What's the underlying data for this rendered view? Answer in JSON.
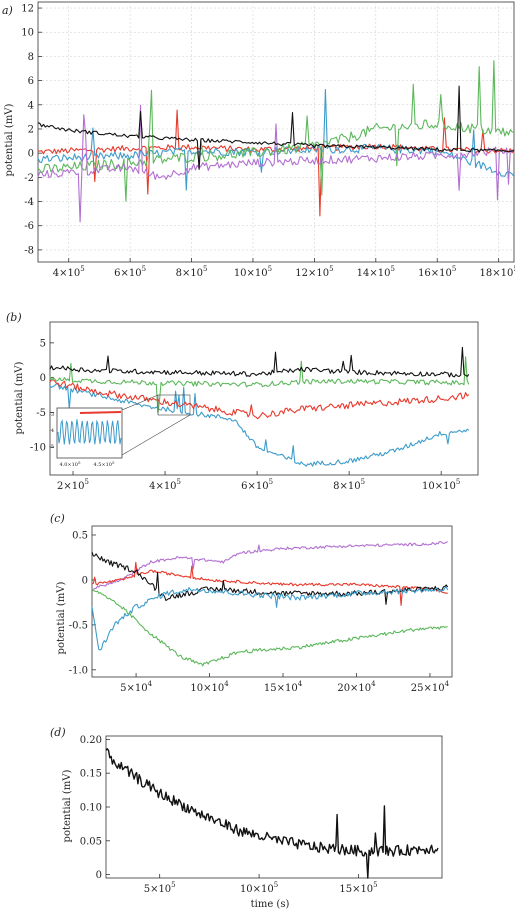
{
  "chart_data": [
    {
      "panel_label": "a)",
      "type": "line",
      "ylabel": "potential (mV)",
      "xlim": [
        300000,
        1850000
      ],
      "ylim": [
        -9,
        12.5
      ],
      "yticks": [
        -8,
        -6,
        -4,
        -2,
        0,
        2,
        4,
        6,
        8,
        10,
        12
      ],
      "ytick_labels": [
        "-8",
        "-6",
        "-4",
        "-2",
        "0",
        "2",
        "4",
        "6",
        "8",
        "10",
        "12"
      ],
      "xticks": [
        400000,
        600000,
        800000,
        1000000,
        1200000,
        1400000,
        1600000,
        1800000
      ],
      "xtick_labels": [
        {
          "m": "4",
          "e": "5"
        },
        {
          "m": "6",
          "e": "5"
        },
        {
          "m": "8",
          "e": "5"
        },
        {
          "m": "10",
          "e": "5"
        },
        {
          "m": "12",
          "e": "5"
        },
        {
          "m": "14",
          "e": "5"
        },
        {
          "m": "16",
          "e": "5"
        },
        {
          "m": "18",
          "e": "5"
        }
      ],
      "grid": true,
      "series": [
        {
          "color": "#e8392c",
          "x": [
            300000,
            400000,
            600000,
            800000,
            1000000,
            1200000,
            1400000,
            1600000,
            1800000,
            1850000
          ],
          "y": [
            0.1,
            0.2,
            0.4,
            0.5,
            0.3,
            0.4,
            0.6,
            0.3,
            0.2,
            0.2
          ]
        },
        {
          "color": "#3d9ccb",
          "x": [
            300000,
            400000,
            600000,
            800000,
            1000000,
            1200000,
            1400000,
            1600000,
            1800000,
            1850000
          ],
          "y": [
            -0.5,
            -0.4,
            -0.2,
            0.2,
            0.1,
            0.3,
            0.4,
            0.2,
            -1.5,
            -1.8
          ]
        },
        {
          "color": "#5db85c",
          "x": [
            300000,
            400000,
            600000,
            800000,
            1000000,
            1200000,
            1300000,
            1400000,
            1600000,
            1800000,
            1850000
          ],
          "y": [
            -1.4,
            -1.2,
            -0.8,
            -0.3,
            0.0,
            0.6,
            1.2,
            2.0,
            2.4,
            1.8,
            1.6
          ]
        },
        {
          "color": "#b26fd1",
          "x": [
            300000,
            400000,
            600000,
            700000,
            800000,
            1000000,
            1200000,
            1400000,
            1600000,
            1800000,
            1850000
          ],
          "y": [
            -1.8,
            -1.6,
            -1.2,
            -2.0,
            -1.2,
            -0.8,
            -0.6,
            -0.4,
            -0.2,
            0.2,
            0.3
          ]
        },
        {
          "color": "#111111",
          "x": [
            300000,
            400000,
            600000,
            800000,
            1000000,
            1200000,
            1400000,
            1600000,
            1800000,
            1850000
          ],
          "y": [
            2.4,
            1.9,
            1.4,
            1.1,
            0.9,
            0.6,
            0.5,
            0.3,
            0.2,
            0.2
          ]
        }
      ]
    },
    {
      "panel_label": "(b)",
      "type": "line",
      "ylabel": "potential (mV)",
      "xlim": [
        150000,
        1080000
      ],
      "ylim": [
        -14,
        8
      ],
      "yticks": [
        -10,
        -5,
        0,
        5
      ],
      "ytick_labels": [
        "-10",
        "-5",
        "0",
        "5"
      ],
      "xticks": [
        200000,
        400000,
        600000,
        800000,
        1000000
      ],
      "xtick_labels": [
        {
          "m": "2",
          "e": "5"
        },
        {
          "m": "4",
          "e": "5"
        },
        {
          "m": "6",
          "e": "5"
        },
        {
          "m": "8",
          "e": "5"
        },
        {
          "m": "10",
          "e": "5"
        }
      ],
      "grid": false,
      "series": [
        {
          "color": "#3d9ccb",
          "x": [
            150000,
            250000,
            350000,
            450000,
            550000,
            600000,
            700000,
            800000,
            900000,
            1000000,
            1060000
          ],
          "y": [
            -1,
            -2.5,
            -4,
            -5,
            -6,
            -10,
            -12.5,
            -12,
            -10.5,
            -8,
            -7.5
          ]
        },
        {
          "color": "#e8392c",
          "x": [
            150000,
            250000,
            350000,
            450000,
            550000,
            600000,
            700000,
            800000,
            900000,
            1000000,
            1060000
          ],
          "y": [
            -0.5,
            -2,
            -3,
            -4,
            -5,
            -5.5,
            -4.5,
            -4,
            -3.5,
            -3,
            -2.5
          ]
        },
        {
          "color": "#5db85c",
          "x": [
            150000,
            250000,
            400000,
            600000,
            700000,
            800000,
            1000000,
            1060000
          ],
          "y": [
            -0.2,
            -0.5,
            -0.8,
            -1.0,
            -0.6,
            -0.5,
            -0.7,
            -0.8
          ]
        },
        {
          "color": "#111111",
          "x": [
            150000,
            250000,
            400000,
            600000,
            700000,
            800000,
            1000000,
            1060000
          ],
          "y": [
            1.5,
            1.0,
            0.8,
            0.5,
            1.2,
            0.8,
            0.5,
            0.3
          ]
        }
      ],
      "inset": {
        "xtick_labels": [
          {
            "m": "4.0",
            "e": "5"
          },
          {
            "m": "4.5",
            "e": "5"
          }
        ],
        "ytick_labels": [
          "-3",
          "-4",
          "-5"
        ]
      }
    },
    {
      "panel_label": "(c)",
      "type": "line",
      "ylabel": "potential (mV)",
      "xlim": [
        20000,
        265000
      ],
      "ylim": [
        -1.08,
        0.6
      ],
      "yticks": [
        -1.0,
        -0.5,
        0,
        0.5
      ],
      "ytick_labels": [
        "-1.0",
        "-0.5",
        "0",
        "0.5"
      ],
      "xticks": [
        50000,
        100000,
        150000,
        200000,
        250000
      ],
      "xtick_labels": [
        {
          "m": "5",
          "e": "4"
        },
        {
          "m": "10",
          "e": "4"
        },
        {
          "m": "15",
          "e": "4"
        },
        {
          "m": "20",
          "e": "4"
        },
        {
          "m": "25",
          "e": "4"
        }
      ],
      "grid": false,
      "series": [
        {
          "color": "#b26fd1",
          "x": [
            20000,
            40000,
            60000,
            80000,
            110000,
            120000,
            150000,
            200000,
            250000,
            262000
          ],
          "y": [
            -0.1,
            0.0,
            0.2,
            0.25,
            0.2,
            0.3,
            0.35,
            0.38,
            0.4,
            0.42
          ]
        },
        {
          "color": "#e8392c",
          "x": [
            20000,
            40000,
            60000,
            80000,
            100000,
            150000,
            200000,
            250000,
            262000
          ],
          "y": [
            -0.05,
            0.0,
            0.1,
            0.05,
            0.0,
            -0.05,
            -0.05,
            -0.1,
            -0.15
          ]
        },
        {
          "color": "#111111",
          "x": [
            20000,
            30000,
            50000,
            70000,
            100000,
            150000,
            200000,
            250000,
            262000
          ],
          "y": [
            0.3,
            0.2,
            0.1,
            -0.2,
            -0.1,
            -0.15,
            -0.15,
            -0.1,
            -0.08
          ]
        },
        {
          "color": "#3d9ccb",
          "x": [
            20000,
            25000,
            35000,
            50000,
            70000,
            90000,
            120000,
            160000,
            200000,
            262000
          ],
          "y": [
            -0.3,
            -0.8,
            -0.5,
            -0.3,
            -0.15,
            -0.1,
            -0.15,
            -0.2,
            -0.15,
            -0.1
          ]
        },
        {
          "color": "#5db85c",
          "x": [
            20000,
            40000,
            60000,
            80000,
            95000,
            120000,
            160000,
            200000,
            240000,
            262000
          ],
          "y": [
            -0.1,
            -0.3,
            -0.6,
            -0.85,
            -0.95,
            -0.8,
            -0.75,
            -0.65,
            -0.55,
            -0.52
          ]
        }
      ]
    },
    {
      "panel_label": "(d)",
      "type": "line",
      "ylabel": "potential (mV)",
      "xlabel": "time (s)",
      "xlim": [
        230000,
        1920000
      ],
      "ylim": [
        -0.005,
        0.205
      ],
      "yticks": [
        0,
        0.05,
        0.1,
        0.15,
        0.2
      ],
      "ytick_labels": [
        "0",
        "0.05",
        "0.10",
        "0.15",
        "0.20"
      ],
      "xticks": [
        500000,
        1000000,
        1500000
      ],
      "xtick_labels": [
        {
          "m": "5",
          "e": "5"
        },
        {
          "m": "10",
          "e": "5"
        },
        {
          "m": "15",
          "e": "5"
        }
      ],
      "grid": false,
      "series": [
        {
          "color": "#111111",
          "x": [
            230000,
            300000,
            500000,
            700000,
            900000,
            1100000,
            1300000,
            1500000,
            1700000,
            1900000
          ],
          "y": [
            0.18,
            0.16,
            0.12,
            0.09,
            0.065,
            0.05,
            0.04,
            0.035,
            0.035,
            0.04
          ]
        }
      ]
    }
  ]
}
